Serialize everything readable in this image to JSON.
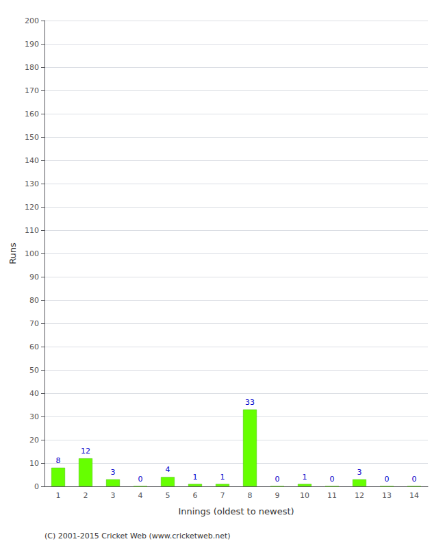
{
  "chart_data": {
    "type": "bar",
    "xlabel": "Innings (oldest to newest)",
    "ylabel": "Runs",
    "categories": [
      1,
      2,
      3,
      4,
      5,
      6,
      7,
      8,
      9,
      10,
      11,
      12,
      13,
      14
    ],
    "values": [
      8,
      12,
      3,
      0,
      4,
      1,
      1,
      33,
      0,
      1,
      0,
      3,
      0,
      0
    ],
    "color": "#66ff00",
    "ylim": [
      0,
      200
    ],
    "yticks": [
      0,
      10,
      20,
      30,
      40,
      50,
      60,
      70,
      80,
      90,
      100,
      110,
      120,
      130,
      140,
      150,
      160,
      170,
      180,
      190,
      200
    ],
    "grid": true,
    "data_labels": true,
    "annotations": [
      "(C) 2001-2015 Cricket Web (www.cricketweb.net)"
    ]
  }
}
